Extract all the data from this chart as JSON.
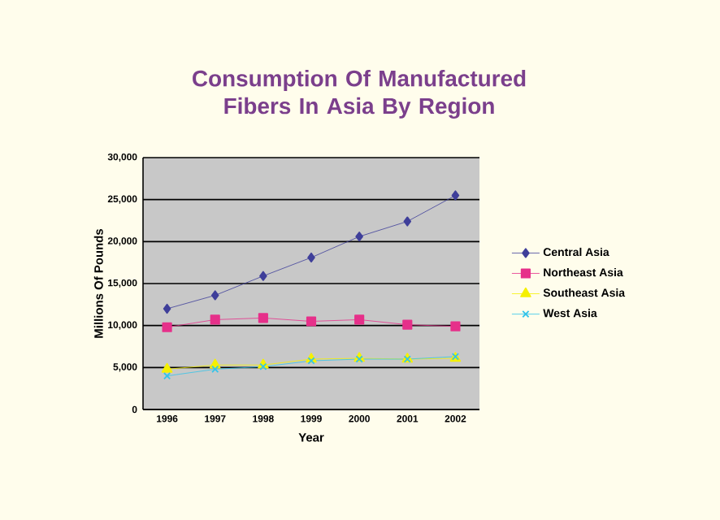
{
  "chart_data": {
    "type": "line",
    "title": "Consumption Of Manufactured Fibers In Asia By Region",
    "xlabel": "Year",
    "ylabel": "Millions Of Pounds",
    "categories": [
      "1996",
      "1997",
      "1998",
      "1999",
      "2000",
      "2001",
      "2002"
    ],
    "series": [
      {
        "name": "Central Asia",
        "color": "#3f3f9a",
        "marker": "diamond",
        "values": [
          12000,
          13600,
          15900,
          18100,
          20600,
          22400,
          25500
        ]
      },
      {
        "name": "Northeast Asia",
        "color": "#e6308a",
        "marker": "square",
        "values": [
          9800,
          10700,
          10900,
          10500,
          10700,
          10100,
          9900
        ]
      },
      {
        "name": "Southeast Asia",
        "color": "#f5f000",
        "marker": "triangle",
        "values": [
          4800,
          5300,
          5300,
          6000,
          6100,
          6000,
          6100
        ]
      },
      {
        "name": "West Asia",
        "color": "#33c4ea",
        "marker": "cross",
        "values": [
          4000,
          4800,
          5100,
          5800,
          6000,
          6000,
          6300
        ]
      }
    ],
    "ylim": [
      0,
      30000
    ],
    "yticks": [
      {
        "value": 0,
        "label": "0"
      },
      {
        "value": 5000,
        "label": "5,000"
      },
      {
        "value": 10000,
        "label": "10,000"
      },
      {
        "value": 15000,
        "label": "15,000"
      },
      {
        "value": 20000,
        "label": "20,000"
      },
      {
        "value": 25000,
        "label": "25,000"
      },
      {
        "value": 30000,
        "label": "30,000"
      }
    ],
    "grid": "y",
    "legend": "right",
    "line_style": "solid"
  }
}
